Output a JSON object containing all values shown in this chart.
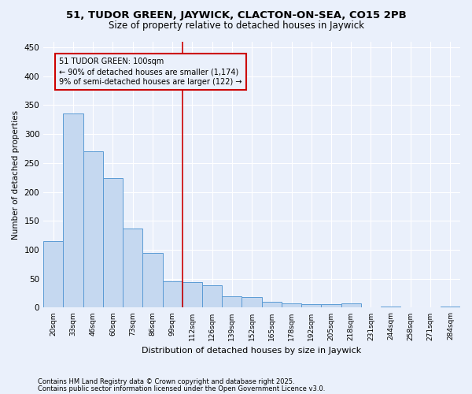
{
  "title1": "51, TUDOR GREEN, JAYWICK, CLACTON-ON-SEA, CO15 2PB",
  "title2": "Size of property relative to detached houses in Jaywick",
  "xlabel": "Distribution of detached houses by size in Jaywick",
  "ylabel": "Number of detached properties",
  "categories": [
    "20sqm",
    "33sqm",
    "46sqm",
    "60sqm",
    "73sqm",
    "86sqm",
    "99sqm",
    "112sqm",
    "126sqm",
    "139sqm",
    "152sqm",
    "165sqm",
    "178sqm",
    "192sqm",
    "205sqm",
    "218sqm",
    "231sqm",
    "244sqm",
    "258sqm",
    "271sqm",
    "284sqm"
  ],
  "values": [
    115,
    335,
    270,
    224,
    137,
    94,
    45,
    44,
    39,
    19,
    18,
    10,
    8,
    6,
    6,
    8,
    1,
    2,
    1,
    1,
    2
  ],
  "bar_color": "#c5d8f0",
  "bar_edge_color": "#5b9bd5",
  "vline_index": 6,
  "vline_color": "#cc0000",
  "annotation_box_color": "#cc0000",
  "ylim": [
    0,
    460
  ],
  "yticks": [
    0,
    50,
    100,
    150,
    200,
    250,
    300,
    350,
    400,
    450
  ],
  "background_color": "#eaf0fb",
  "grid_color": "#ffffff",
  "footer1": "Contains HM Land Registry data © Crown copyright and database right 2025.",
  "footer2": "Contains public sector information licensed under the Open Government Licence v3.0."
}
